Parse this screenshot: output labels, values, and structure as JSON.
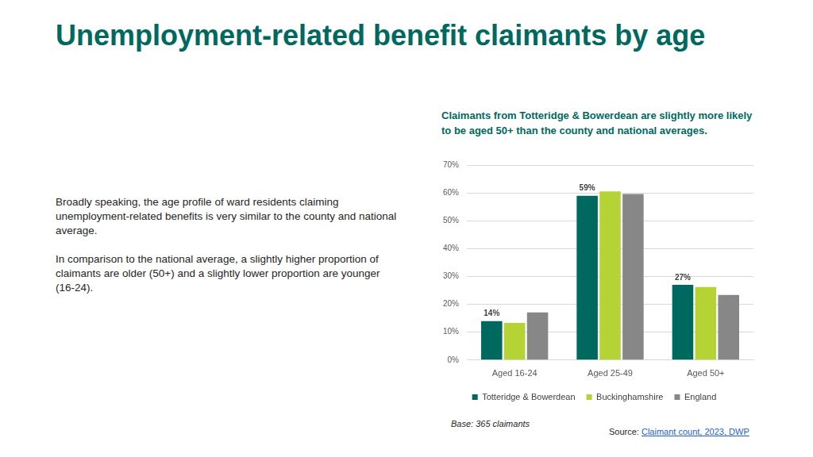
{
  "header": {
    "title": "Unemployment-related benefit claimants by age"
  },
  "commentary": [
    "Broadly speaking, the age profile of ward residents claiming unemployment-related benefits is very similar to the county and national average.",
    "In comparison to the national average, a slightly higher proportion of claimants are older (50+) and a slightly lower proportion are younger (16-24)."
  ],
  "chart_data": {
    "type": "bar",
    "title": "Claimants from Totteridge & Bowerdean are slightly more likely to be aged 50+ than the county and national averages.",
    "categories": [
      "Aged 16-24",
      "Aged 25-49",
      "Aged 50+"
    ],
    "series": [
      {
        "name": "Totteridge & Bowerdean",
        "color": "#00695f",
        "values": [
          14,
          59,
          27
        ],
        "value_labels": [
          "14%",
          "59%",
          "27%"
        ]
      },
      {
        "name": "Buckinghamshire",
        "color": "#b5d334",
        "values": [
          13.3,
          60.5,
          26.2
        ]
      },
      {
        "name": "England",
        "color": "#878787",
        "values": [
          17.1,
          59.6,
          23.4
        ]
      }
    ],
    "ylim": [
      0,
      70
    ],
    "yticks": [
      {
        "value": 0,
        "label": "0%"
      },
      {
        "value": 10,
        "label": "10%"
      },
      {
        "value": 20,
        "label": "20%"
      },
      {
        "value": 30,
        "label": "30%"
      },
      {
        "value": 40,
        "label": "40%"
      },
      {
        "value": 50,
        "label": "50%"
      },
      {
        "value": 60,
        "label": "60%"
      },
      {
        "value": 70,
        "label": "70%"
      }
    ],
    "grid": true,
    "legend": "bottom",
    "note": "Base: 365 claimants"
  },
  "source": {
    "prefix": "Source:",
    "text": "Claimant count, 2023, DWP"
  }
}
